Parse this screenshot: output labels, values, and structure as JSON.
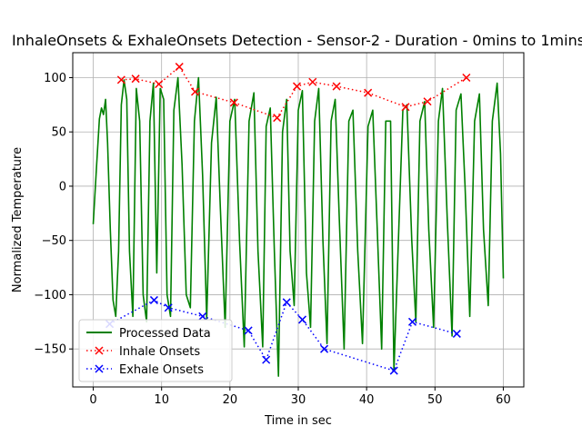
{
  "chart_data": {
    "type": "line",
    "title": "InhaleOnsets & ExhaleOnsets Detection - Sensor-2 - Duration - 0mins to 1mins",
    "xlabel": "Time in sec",
    "ylabel": "Normalized Temperature",
    "xlim": [
      -3,
      63
    ],
    "ylim": [
      -185,
      123
    ],
    "xticks": [
      0,
      10,
      20,
      30,
      40,
      50,
      60
    ],
    "yticks": [
      -150,
      -100,
      -50,
      0,
      50,
      100
    ],
    "grid": true,
    "legend_position": "lower-left",
    "series": [
      {
        "name": "Processed Data",
        "style": "solid",
        "color": "#008000",
        "points": [
          [
            0,
            -35
          ],
          [
            0.5,
            20
          ],
          [
            0.9,
            62
          ],
          [
            1.2,
            72
          ],
          [
            1.5,
            66
          ],
          [
            1.8,
            80
          ],
          [
            2.1,
            40
          ],
          [
            2.5,
            -40
          ],
          [
            2.9,
            -105
          ],
          [
            3.3,
            -120
          ],
          [
            3.7,
            -60
          ],
          [
            4.1,
            75
          ],
          [
            4.5,
            98
          ],
          [
            4.9,
            80
          ],
          [
            5.3,
            -60
          ],
          [
            5.8,
            -120
          ],
          [
            6.3,
            90
          ],
          [
            6.8,
            60
          ],
          [
            7.3,
            -100
          ],
          [
            7.8,
            -125
          ],
          [
            8.3,
            60
          ],
          [
            8.8,
            95
          ],
          [
            9.3,
            -80
          ],
          [
            9.8,
            90
          ],
          [
            10.3,
            80
          ],
          [
            10.8,
            -100
          ],
          [
            11.3,
            -120
          ],
          [
            11.8,
            70
          ],
          [
            12.4,
            100
          ],
          [
            13.0,
            20
          ],
          [
            13.6,
            -100
          ],
          [
            14.2,
            -112
          ],
          [
            14.8,
            60
          ],
          [
            15.4,
            100
          ],
          [
            16.0,
            10
          ],
          [
            16.6,
            -122
          ],
          [
            17.3,
            40
          ],
          [
            18.0,
            82
          ],
          [
            18.6,
            -20
          ],
          [
            19.3,
            -130
          ],
          [
            20.0,
            60
          ],
          [
            20.7,
            80
          ],
          [
            21.4,
            -50
          ],
          [
            22.1,
            -148
          ],
          [
            22.8,
            60
          ],
          [
            23.5,
            86
          ],
          [
            24.1,
            -60
          ],
          [
            24.8,
            -148
          ],
          [
            25.3,
            55
          ],
          [
            25.9,
            72
          ],
          [
            26.5,
            -60
          ],
          [
            27.1,
            -175
          ],
          [
            27.7,
            50
          ],
          [
            28.3,
            80
          ],
          [
            28.8,
            -60
          ],
          [
            29.4,
            -110
          ],
          [
            30.0,
            70
          ],
          [
            30.6,
            88
          ],
          [
            31.2,
            -80
          ],
          [
            31.8,
            -130
          ],
          [
            32.4,
            60
          ],
          [
            33.0,
            90
          ],
          [
            33.6,
            -50
          ],
          [
            34.2,
            -145
          ],
          [
            34.8,
            60
          ],
          [
            35.4,
            80
          ],
          [
            36.0,
            -30
          ],
          [
            36.7,
            -150
          ],
          [
            37.4,
            60
          ],
          [
            38.0,
            70
          ],
          [
            38.7,
            -60
          ],
          [
            39.4,
            -145
          ],
          [
            40.2,
            55
          ],
          [
            40.9,
            70
          ],
          [
            41.5,
            -30
          ],
          [
            42.2,
            -150
          ],
          [
            42.8,
            60
          ],
          [
            43.5,
            60
          ],
          [
            44.0,
            -170
          ],
          [
            44.6,
            -60
          ],
          [
            45.3,
            70
          ],
          [
            45.9,
            75
          ],
          [
            46.6,
            -50
          ],
          [
            47.2,
            -125
          ],
          [
            47.8,
            60
          ],
          [
            48.5,
            78
          ],
          [
            49.1,
            -40
          ],
          [
            49.8,
            -130
          ],
          [
            50.5,
            60
          ],
          [
            51.1,
            90
          ],
          [
            51.8,
            -30
          ],
          [
            52.5,
            -138
          ],
          [
            53.1,
            70
          ],
          [
            53.8,
            85
          ],
          [
            54.4,
            0
          ],
          [
            55.1,
            -120
          ],
          [
            55.8,
            60
          ],
          [
            56.5,
            85
          ],
          [
            57.1,
            -40
          ],
          [
            57.8,
            -110
          ],
          [
            58.4,
            60
          ],
          [
            59.1,
            95
          ],
          [
            59.6,
            30
          ],
          [
            60,
            -85
          ]
        ]
      },
      {
        "name": "Inhale Onsets",
        "style": "dotted",
        "marker": "x",
        "color": "#ff0000",
        "points": [
          [
            4.1,
            98
          ],
          [
            6.2,
            99
          ],
          [
            9.6,
            94
          ],
          [
            12.6,
            110
          ],
          [
            14.9,
            87
          ],
          [
            20.6,
            77
          ],
          [
            26.9,
            63
          ],
          [
            29.8,
            92
          ],
          [
            32.1,
            96
          ],
          [
            35.6,
            92
          ],
          [
            40.2,
            86
          ],
          [
            45.7,
            73
          ],
          [
            48.9,
            78
          ],
          [
            54.6,
            100
          ]
        ]
      },
      {
        "name": "Exhale Onsets",
        "style": "dotted",
        "marker": "x",
        "color": "#0000ff",
        "points": [
          [
            2.4,
            -127
          ],
          [
            8.9,
            -105
          ],
          [
            11.0,
            -112
          ],
          [
            16.0,
            -120
          ],
          [
            22.7,
            -133
          ],
          [
            25.3,
            -160
          ],
          [
            28.3,
            -107
          ],
          [
            30.6,
            -123
          ],
          [
            33.8,
            -150
          ],
          [
            44.0,
            -170
          ],
          [
            46.7,
            -125
          ],
          [
            53.2,
            -136
          ]
        ]
      }
    ]
  }
}
